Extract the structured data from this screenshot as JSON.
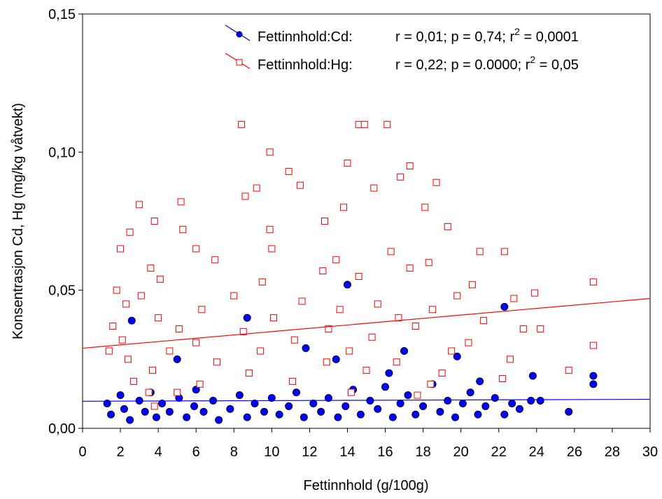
{
  "chart_data": {
    "type": "scatter",
    "x_label": "Fettinnhold (g/100g)",
    "y_label": "Konsentrasjon Cd, Hg (mg/kg våtvekt)",
    "xlim": [
      0,
      30
    ],
    "ylim": [
      0,
      0.15
    ],
    "xticks": [
      0,
      2,
      4,
      6,
      8,
      10,
      12,
      14,
      16,
      18,
      20,
      22,
      24,
      26,
      28,
      30
    ],
    "yticks": [
      {
        "value": 0,
        "label": "0,00"
      },
      {
        "value": 0.05,
        "label": "0,05"
      },
      {
        "value": 0.1,
        "label": "0,10"
      },
      {
        "value": 0.15,
        "label": "0,15"
      }
    ],
    "legend": "upper right",
    "series": [
      {
        "name": "Fettinnhold:Cd:",
        "stats": [
          "r = 0,01; p = 0,74; r",
          "2",
          " = 0,0001"
        ],
        "marker": "circle",
        "color": "#0000ff",
        "x": [
          2.6,
          14.0,
          8.7,
          22.3,
          11.8,
          17.0,
          5.0,
          19.8,
          13.4,
          23.8,
          27.0,
          27.0,
          25.7,
          24.2,
          23.7,
          1.3,
          1.5,
          2.0,
          2.2,
          2.5,
          3.0,
          3.3,
          3.6,
          3.9,
          4.2,
          4.6,
          5.1,
          5.5,
          5.9,
          6.4,
          6.9,
          7.2,
          7.8,
          8.3,
          8.7,
          9.1,
          9.6,
          10.0,
          10.4,
          10.9,
          11.3,
          11.7,
          12.2,
          12.6,
          13.0,
          13.5,
          13.9,
          14.3,
          14.7,
          15.2,
          15.6,
          16.0,
          16.4,
          16.8,
          17.2,
          17.6,
          18.0,
          18.5,
          18.9,
          19.3,
          19.7,
          20.1,
          20.5,
          20.9,
          21.3,
          21.8,
          22.3,
          22.7,
          23.1,
          21.0,
          16.2,
          6.0
        ],
        "values": [
          0.039,
          0.052,
          0.04,
          0.044,
          0.029,
          0.028,
          0.025,
          0.026,
          0.025,
          0.019,
          0.019,
          0.016,
          0.006,
          0.01,
          0.01,
          0.009,
          0.005,
          0.012,
          0.007,
          0.003,
          0.01,
          0.006,
          0.013,
          0.004,
          0.009,
          0.006,
          0.011,
          0.004,
          0.008,
          0.006,
          0.01,
          0.003,
          0.007,
          0.012,
          0.004,
          0.009,
          0.006,
          0.011,
          0.005,
          0.008,
          0.013,
          0.004,
          0.009,
          0.006,
          0.011,
          0.004,
          0.008,
          0.014,
          0.005,
          0.01,
          0.007,
          0.015,
          0.004,
          0.009,
          0.012,
          0.005,
          0.008,
          0.016,
          0.006,
          0.01,
          0.004,
          0.009,
          0.013,
          0.005,
          0.008,
          0.011,
          0.005,
          0.009,
          0.007,
          0.017,
          0.02,
          0.014
        ],
        "trend": {
          "x": [
            0,
            30
          ],
          "values": [
            0.0098,
            0.0105
          ]
        }
      },
      {
        "name": "Fettinnhold:Hg:",
        "stats": [
          "r = 0,22; p = 0.0000; r",
          "2",
          " = 0,05"
        ],
        "marker": "square",
        "color": "#ff0000",
        "x": [
          8.4,
          14.6,
          14.9,
          16.1,
          9.9,
          14.0,
          17.3,
          10.9,
          16.8,
          18.7,
          11.5,
          9.2,
          15.4,
          8.6,
          3.0,
          5.2,
          13.8,
          18.1,
          12.8,
          3.8,
          2.5,
          5.3,
          9.9,
          19.3,
          2.0,
          6.0,
          10.0,
          16.3,
          21.0,
          22.3,
          7.0,
          13.4,
          18.3,
          3.6,
          12.7,
          17.3,
          1.8,
          4.1,
          9.5,
          14.6,
          20.6,
          23.9,
          27.0,
          3.1,
          8.0,
          11.6,
          15.6,
          19.8,
          22.8,
          2.3,
          6.3,
          13.6,
          18.5,
          4.0,
          10.1,
          16.7,
          21.2,
          24.2,
          1.6,
          5.1,
          8.5,
          13.0,
          17.6,
          23.3,
          2.1,
          6.0,
          11.2,
          15.3,
          20.4,
          1.4,
          4.6,
          9.4,
          14.1,
          19.5,
          27.0,
          2.4,
          7.1,
          12.9,
          16.6,
          22.6,
          3.7,
          8.8,
          15.0,
          19.0,
          25.7,
          2.7,
          6.2,
          11.1,
          18.4,
          22.2,
          3.5,
          5.0,
          14.2,
          17.7,
          3.8
        ],
        "values": [
          0.11,
          0.11,
          0.11,
          0.11,
          0.1,
          0.096,
          0.095,
          0.093,
          0.091,
          0.089,
          0.088,
          0.087,
          0.087,
          0.084,
          0.081,
          0.082,
          0.08,
          0.08,
          0.075,
          0.075,
          0.071,
          0.072,
          0.072,
          0.073,
          0.065,
          0.065,
          0.065,
          0.064,
          0.064,
          0.064,
          0.061,
          0.061,
          0.06,
          0.058,
          0.057,
          0.058,
          0.05,
          0.054,
          0.053,
          0.055,
          0.052,
          0.049,
          0.053,
          0.048,
          0.048,
          0.046,
          0.045,
          0.048,
          0.047,
          0.045,
          0.043,
          0.043,
          0.043,
          0.04,
          0.04,
          0.04,
          0.039,
          0.036,
          0.037,
          0.036,
          0.035,
          0.036,
          0.037,
          0.036,
          0.032,
          0.031,
          0.032,
          0.033,
          0.031,
          0.028,
          0.028,
          0.028,
          0.028,
          0.028,
          0.03,
          0.025,
          0.024,
          0.024,
          0.024,
          0.025,
          0.021,
          0.02,
          0.021,
          0.02,
          0.021,
          0.017,
          0.016,
          0.017,
          0.016,
          0.018,
          0.013,
          0.013,
          0.013,
          0.012,
          0.008
        ],
        "trend": {
          "x": [
            0,
            30
          ],
          "values": [
            0.029,
            0.047
          ]
        }
      }
    ]
  }
}
